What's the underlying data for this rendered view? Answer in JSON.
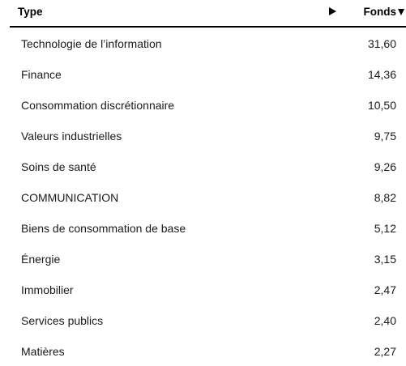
{
  "header": {
    "type_label": "Type",
    "fonds_label": "Fonds",
    "expand_icon": "play-triangle-right",
    "sort_icon": "triangle-down"
  },
  "rows": [
    {
      "label": "Technologie de l’information",
      "value": "31,60"
    },
    {
      "label": "Finance",
      "value": "14,36"
    },
    {
      "label": "Consommation discrétionnaire",
      "value": "10,50"
    },
    {
      "label": "Valeurs industrielles",
      "value": "9,75"
    },
    {
      "label": "Soins de santé",
      "value": "9,26"
    },
    {
      "label": "COMMUNICATION",
      "value": "8,82"
    },
    {
      "label": "Biens de consommation de base",
      "value": "5,12"
    },
    {
      "label": "Énergie",
      "value": "3,15"
    },
    {
      "label": "Immobilier",
      "value": "2,47"
    },
    {
      "label": "Services publics",
      "value": "2,40"
    },
    {
      "label": "Matières",
      "value": "2,27"
    }
  ]
}
